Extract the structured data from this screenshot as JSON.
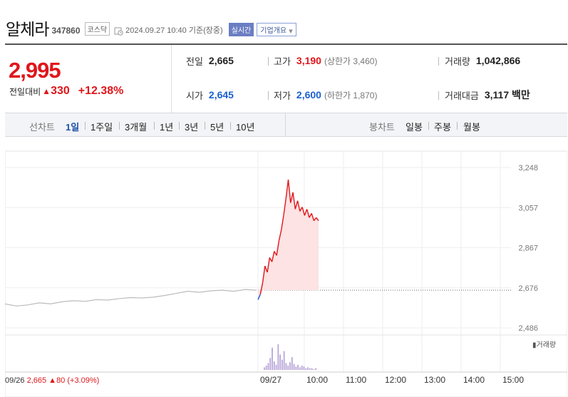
{
  "header": {
    "name": "알체라",
    "code": "347860",
    "market": "코스닥",
    "datetime": "2024.09.27 10:40  기준(장중)",
    "realtime_label": "실시간",
    "overview_label": "기업개요"
  },
  "price": {
    "current": "2,995",
    "change_label": "전일대비",
    "change_arrow": "▲",
    "change_value": "330",
    "change_pct": "+12.38%"
  },
  "info": {
    "prev_label": "전일",
    "prev_value": "2,665",
    "high_label": "고가",
    "high_value": "3,190",
    "upper_limit": "(상한가 3,460)",
    "volume_label": "거래량",
    "volume_value": "1,042,866",
    "open_label": "시가",
    "open_value": "2,645",
    "low_label": "저가",
    "low_value": "2,600",
    "lower_limit": "(하한가 1,870)",
    "amount_label": "거래대금",
    "amount_value": "3,117 백만"
  },
  "tabs": {
    "line_label": "선차트",
    "line_tabs": [
      "1일",
      "1주일",
      "3개월",
      "1년",
      "3년",
      "5년",
      "10년"
    ],
    "active": "1일",
    "candle_label": "봉차트",
    "candle_tabs": [
      "일봉",
      "주봉",
      "월봉"
    ]
  },
  "chart_data": {
    "type": "line",
    "y_ticks": [
      "3,248",
      "3,057",
      "2,867",
      "2,676",
      "2,486"
    ],
    "ylim": [
      2486,
      3248
    ],
    "reference_price": 2665,
    "x_ticks": [
      "09/27",
      "10:00",
      "11:00",
      "12:00",
      "13:00",
      "14:00",
      "15:00"
    ],
    "prev_day": {
      "date": "09/26",
      "close": "2,665",
      "arrow": "▲",
      "change": "80",
      "pct": "(+3.09%)",
      "values": [
        2600,
        2590,
        2595,
        2605,
        2600,
        2610,
        2615,
        2612,
        2620,
        2618,
        2625,
        2630,
        2628,
        2632,
        2640,
        2650,
        2660,
        2655,
        2662,
        2665,
        2660,
        2668,
        2665
      ]
    },
    "today": {
      "values": [
        2620,
        2645,
        2700,
        2780,
        2750,
        2820,
        2800,
        2850,
        2830,
        2900,
        2950,
        3020,
        3100,
        3190,
        3080,
        3130,
        3050,
        3090,
        3040,
        3060,
        3020,
        3050,
        3010,
        3030,
        2995,
        3010,
        2995
      ]
    },
    "volume_legend": "거래량",
    "colors": {
      "up": "#e0161b",
      "down": "#1a5fd0",
      "prev": "#bbbbbb",
      "fill": "#fde3e3"
    }
  }
}
